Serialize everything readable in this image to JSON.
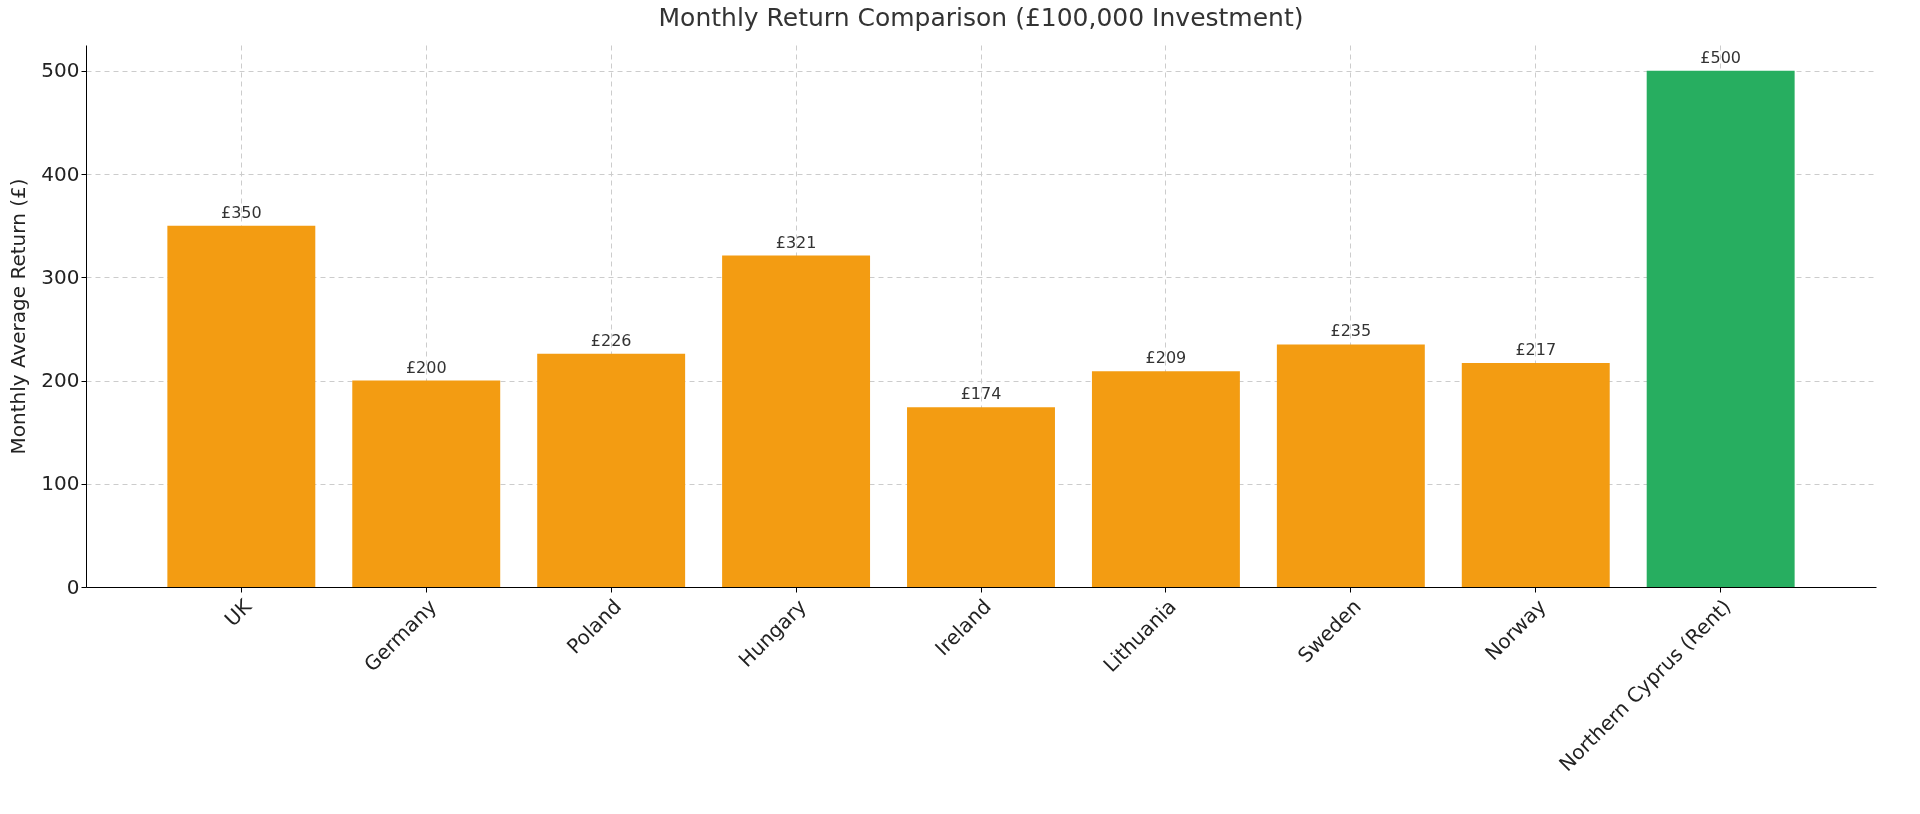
{
  "chart_data": {
    "type": "bar",
    "title": "Monthly Return Comparison (£100,000 Investment)",
    "ylabel": "Monthly Average Return (£)",
    "categories": [
      "UK",
      "Germany",
      "Poland",
      "Hungary",
      "Ireland",
      "Lithuania",
      "Sweden",
      "Norway",
      "Northern Cyprus (Rent)"
    ],
    "values": [
      350,
      200,
      226,
      321,
      174,
      209,
      235,
      217,
      500
    ],
    "colors": [
      "#f39c12",
      "#f39c12",
      "#f39c12",
      "#f39c12",
      "#f39c12",
      "#f39c12",
      "#f39c12",
      "#f39c12",
      "#27ae60"
    ],
    "value_labels": [
      "£350",
      "£200",
      "£226",
      "£321",
      "£174",
      "£209",
      "£235",
      "£217",
      "£500"
    ],
    "ylim": [
      0,
      525
    ],
    "yticks": [
      0,
      100,
      200,
      300,
      400,
      500
    ],
    "grid": true
  }
}
